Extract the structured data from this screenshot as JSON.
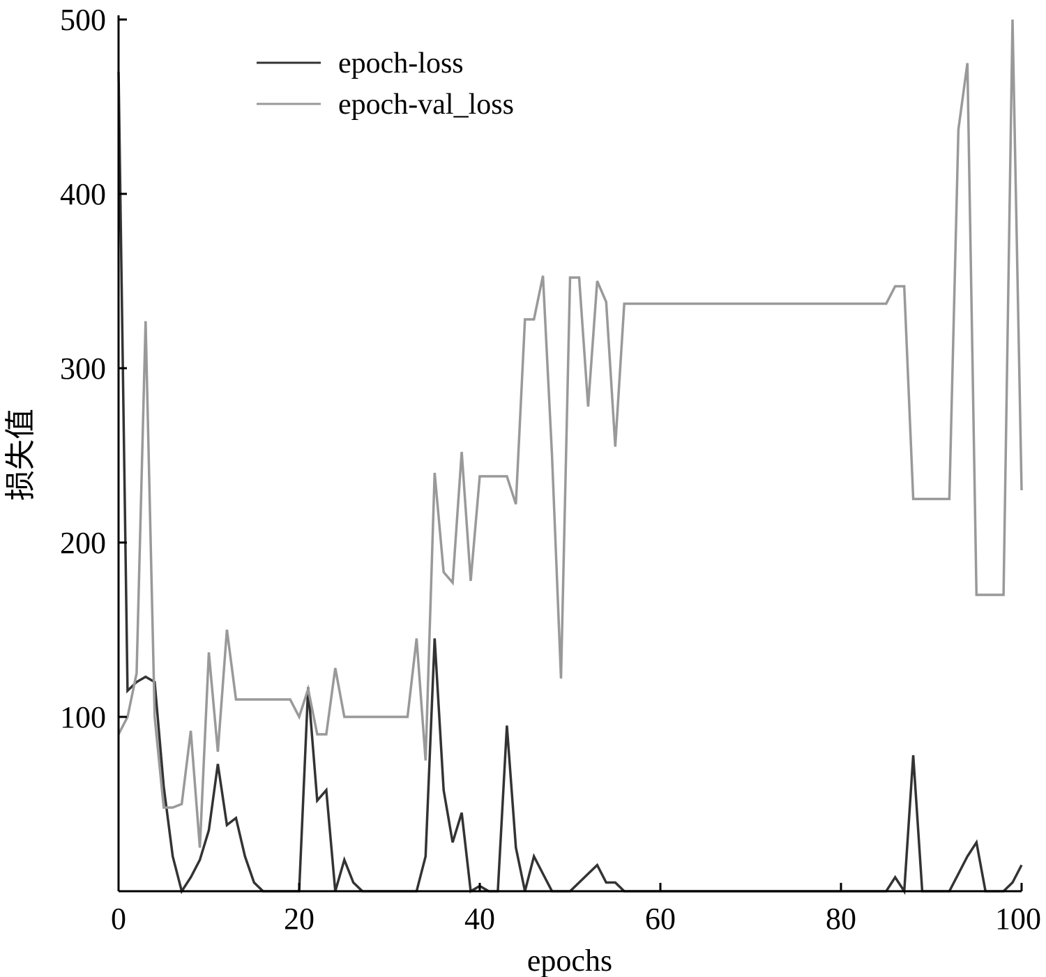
{
  "chart_data": {
    "type": "line",
    "title": "",
    "xlabel": "epochs",
    "ylabel": "损失值",
    "xlim": [
      0,
      100
    ],
    "ylim": [
      0,
      500
    ],
    "x_ticks": [
      "0",
      "20",
      "40",
      "60",
      "80",
      "100"
    ],
    "y_ticks": [
      "100",
      "200",
      "300",
      "400",
      "500"
    ],
    "grid": false,
    "legend_position": "top-left",
    "series": [
      {
        "name": "epoch-loss",
        "color": "#333333",
        "x": [
          0,
          1,
          2,
          3,
          4,
          5,
          6,
          7,
          8,
          9,
          10,
          11,
          12,
          13,
          14,
          15,
          16,
          17,
          18,
          19,
          20,
          21,
          22,
          23,
          24,
          25,
          26,
          27,
          28,
          29,
          30,
          31,
          32,
          33,
          34,
          35,
          36,
          37,
          38,
          39,
          40,
          41,
          42,
          43,
          44,
          45,
          46,
          47,
          48,
          49,
          50,
          51,
          52,
          53,
          54,
          55,
          56,
          57,
          58,
          59,
          60,
          61,
          62,
          63,
          64,
          65,
          66,
          67,
          68,
          69,
          70,
          71,
          72,
          73,
          74,
          75,
          76,
          77,
          78,
          79,
          80,
          81,
          82,
          83,
          84,
          85,
          86,
          87,
          88,
          89,
          90,
          91,
          92,
          93,
          94,
          95,
          96,
          97,
          98,
          99,
          100
        ],
        "values": [
          470,
          115,
          120,
          123,
          120,
          60,
          20,
          0,
          8,
          18,
          35,
          73,
          38,
          42,
          20,
          5,
          0,
          0,
          0,
          0,
          0,
          117,
          52,
          58,
          0,
          18,
          5,
          0,
          0,
          0,
          0,
          0,
          0,
          0,
          20,
          145,
          58,
          28,
          45,
          0,
          3,
          0,
          0,
          95,
          25,
          0,
          20,
          10,
          0,
          0,
          0,
          5,
          10,
          15,
          5,
          5,
          0,
          0,
          0,
          0,
          0,
          0,
          0,
          0,
          0,
          0,
          0,
          0,
          0,
          0,
          0,
          0,
          0,
          0,
          0,
          0,
          0,
          0,
          0,
          0,
          0,
          0,
          0,
          0,
          0,
          0,
          8,
          0,
          78,
          0,
          0,
          0,
          0,
          10,
          20,
          28,
          0,
          0,
          0,
          5,
          15
        ]
      },
      {
        "name": "epoch-val_loss",
        "color": "#999999",
        "x": [
          0,
          1,
          2,
          3,
          4,
          5,
          6,
          7,
          8,
          9,
          10,
          11,
          12,
          13,
          14,
          15,
          16,
          17,
          18,
          19,
          20,
          21,
          22,
          23,
          24,
          25,
          26,
          27,
          28,
          29,
          30,
          31,
          32,
          33,
          34,
          35,
          36,
          37,
          38,
          39,
          40,
          41,
          42,
          43,
          44,
          45,
          46,
          47,
          48,
          49,
          50,
          51,
          52,
          53,
          54,
          55,
          56,
          57,
          58,
          59,
          60,
          61,
          62,
          63,
          64,
          65,
          66,
          67,
          68,
          69,
          70,
          71,
          72,
          73,
          74,
          75,
          76,
          77,
          78,
          79,
          80,
          81,
          82,
          83,
          84,
          85,
          86,
          87,
          88,
          89,
          90,
          91,
          92,
          93,
          94,
          95,
          96,
          97,
          98,
          99,
          100
        ],
        "values": [
          90,
          100,
          125,
          327,
          100,
          48,
          48,
          50,
          92,
          25,
          137,
          80,
          150,
          110,
          110,
          110,
          110,
          110,
          110,
          110,
          100,
          116,
          90,
          90,
          128,
          100,
          100,
          100,
          100,
          100,
          100,
          100,
          100,
          145,
          75,
          240,
          183,
          177,
          252,
          178,
          238,
          238,
          238,
          238,
          222,
          328,
          328,
          353,
          250,
          122,
          352,
          352,
          278,
          350,
          338,
          255,
          337,
          337,
          337,
          337,
          337,
          337,
          337,
          337,
          337,
          337,
          337,
          337,
          337,
          337,
          337,
          337,
          337,
          337,
          337,
          337,
          337,
          337,
          337,
          337,
          337,
          337,
          337,
          337,
          337,
          337,
          347,
          347,
          225,
          225,
          225,
          225,
          225,
          437,
          475,
          170,
          170,
          170,
          170,
          500,
          230
        ]
      }
    ]
  }
}
